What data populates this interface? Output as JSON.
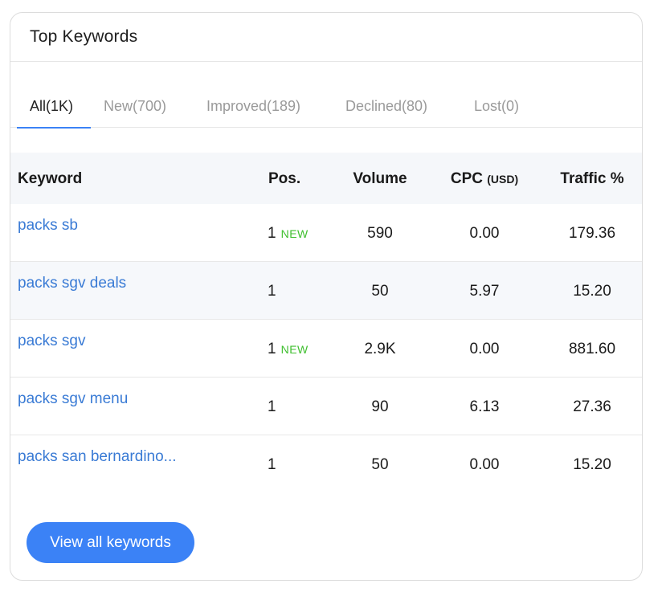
{
  "card": {
    "title": "Top Keywords"
  },
  "tabs": [
    {
      "label": "All(1K)",
      "active": true
    },
    {
      "label": "New(700)",
      "active": false
    },
    {
      "label": "Improved(189)",
      "active": false
    },
    {
      "label": "Declined(80)",
      "active": false
    },
    {
      "label": "Lost(0)",
      "active": false
    }
  ],
  "table": {
    "headers": {
      "keyword": "Keyword",
      "pos": "Pos.",
      "volume": "Volume",
      "cpc": "CPC",
      "cpc_unit": "(USD)",
      "traffic": "Traffic %"
    },
    "rows": [
      {
        "keyword": "packs sb",
        "pos": "1",
        "badge": "NEW",
        "volume": "590",
        "cpc": "0.00",
        "traffic": "179.36"
      },
      {
        "keyword": "packs sgv deals",
        "pos": "1",
        "badge": "",
        "volume": "50",
        "cpc": "5.97",
        "traffic": "15.20"
      },
      {
        "keyword": "packs sgv",
        "pos": "1",
        "badge": "NEW",
        "volume": "2.9K",
        "cpc": "0.00",
        "traffic": "881.60"
      },
      {
        "keyword": "packs sgv menu",
        "pos": "1",
        "badge": "",
        "volume": "90",
        "cpc": "6.13",
        "traffic": "27.36"
      },
      {
        "keyword": "packs san bernardino...",
        "pos": "1",
        "badge": "",
        "volume": "50",
        "cpc": "0.00",
        "traffic": "15.20"
      }
    ]
  },
  "footer": {
    "button_label": "View all keywords"
  },
  "colors": {
    "accent": "#3b82f6",
    "link": "#3a7bd5",
    "new_badge": "#3fbf2f"
  }
}
